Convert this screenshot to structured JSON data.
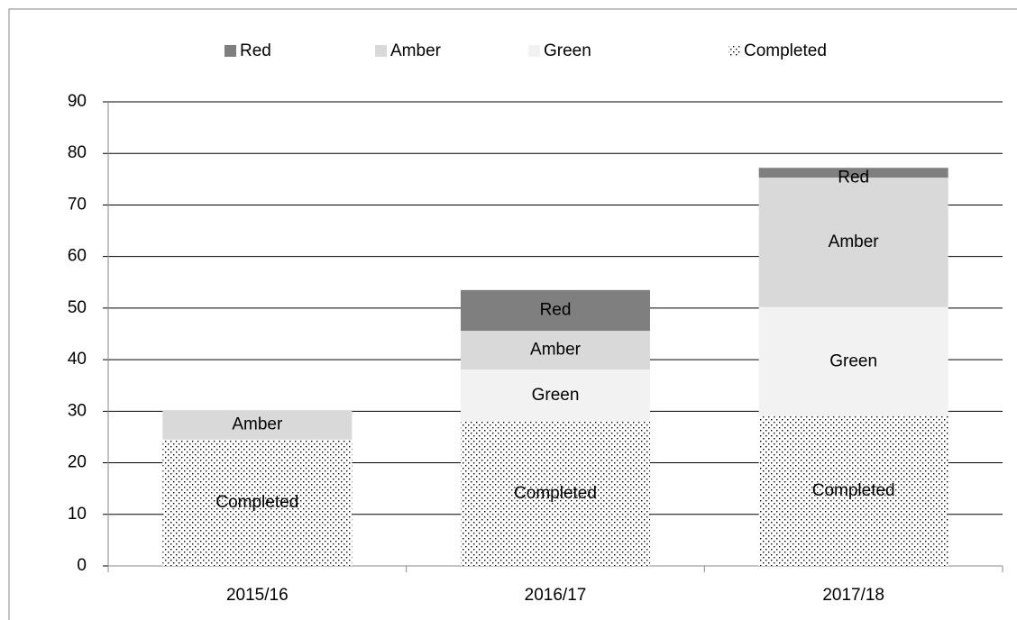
{
  "chart_data": {
    "type": "stacked-bar",
    "categories": [
      "2015/16",
      "2016/17",
      "2017/18"
    ],
    "series": [
      {
        "name": "Red",
        "color": "#7f7f7f",
        "values": [
          null,
          7.9,
          1.9
        ]
      },
      {
        "name": "Amber",
        "color": "#d9d9d9",
        "values": [
          5.7,
          7.5,
          25.1
        ]
      },
      {
        "name": "Green",
        "color": "#f2f2f2",
        "values": [
          null,
          10.1,
          21.2
        ]
      },
      {
        "name": "Completed",
        "color": "dots",
        "values": [
          24.5,
          28.0,
          29.0
        ]
      }
    ],
    "ylim": [
      0,
      90
    ],
    "yticks": [
      0,
      10,
      20,
      30,
      40,
      50,
      60,
      70,
      80,
      90
    ],
    "grid": true,
    "legend": "top"
  }
}
